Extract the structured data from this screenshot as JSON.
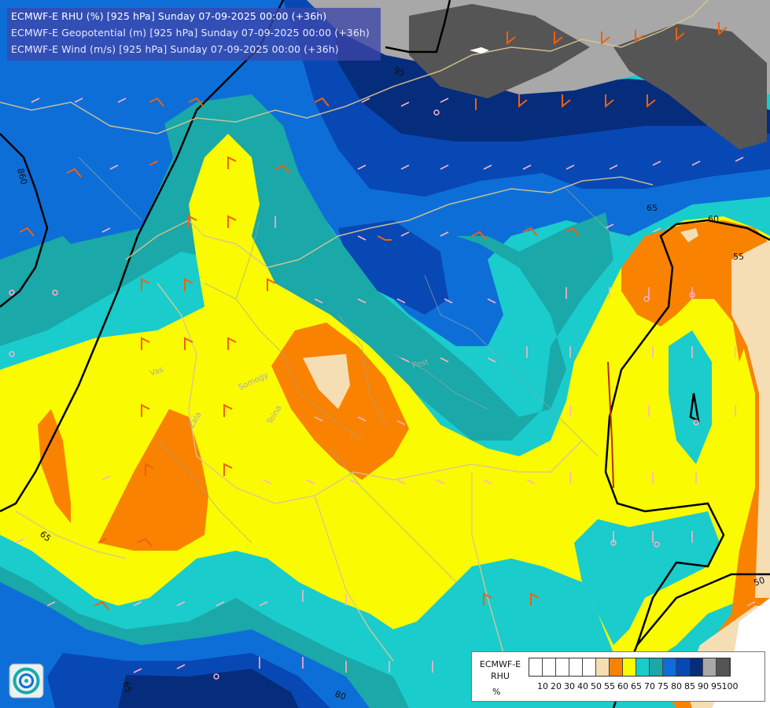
{
  "header": {
    "line1": "ECMWF-E RHU (%) [925 hPa] Sunday 07-09-2025 00:00 (+36h)",
    "line2": "ECMWF-E Geopotential (m) [925 hPa] Sunday 07-09-2025 00:00 (+36h)",
    "line3": "ECMWF-E Wind (m/s) [925 hPa] Sunday 07-09-2025 00:00 (+36h)"
  },
  "legend": {
    "title": "ECMWF-E RHU",
    "unit": "%",
    "levels": [
      "10",
      "20",
      "30",
      "40",
      "50",
      "55",
      "60",
      "65",
      "70",
      "75",
      "80",
      "85",
      "90",
      "95",
      "100"
    ],
    "colors": [
      "#ffffff",
      "#ffffff",
      "#ffffff",
      "#ffffff",
      "#ffffff",
      "#f5deb3",
      "#f98200",
      "#fafa00",
      "#1acccc",
      "#1aa8a8",
      "#0e6ed8",
      "#0848b4",
      "#062c7c",
      "#a8a8a8",
      "#555555"
    ]
  },
  "colors": {
    "rhu_100": "#555555",
    "rhu_95": "#a8a8a8",
    "rhu_90": "#062c7c",
    "rhu_85": "#0848b4",
    "rhu_80": "#0e6ed8",
    "rhu_75": "#1aa8a8",
    "rhu_70": "#1acccc",
    "rhu_65": "#fafa00",
    "rhu_60": "#f98200",
    "rhu_55": "#f5deb3",
    "geopotential_line": "#000000",
    "border_line": "#d8c890",
    "wind_barb_orange": "#f06010",
    "wind_barb_pink": "#ffb0c8"
  },
  "map": {
    "contour_labels": [
      "860",
      "95",
      "65",
      "60",
      "55",
      "65",
      "50",
      "65",
      "80"
    ],
    "place_labels": [
      "Vas",
      "Somogy",
      "Zala",
      "Tolna",
      "Pest"
    ]
  },
  "logo": {
    "icon": "ecmwf-logo-icon"
  }
}
